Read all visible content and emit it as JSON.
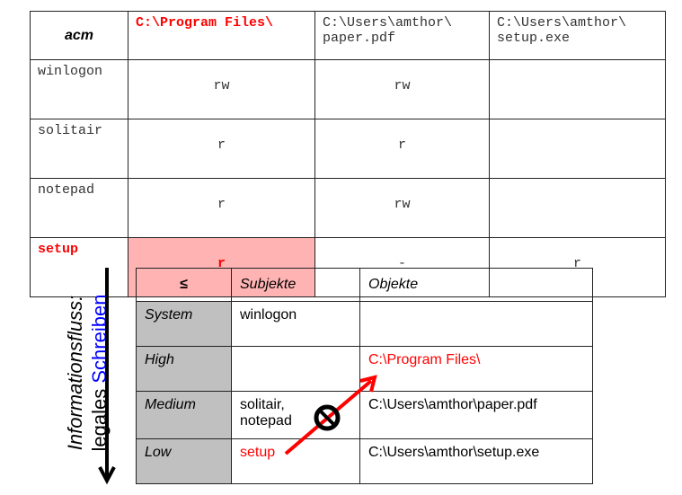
{
  "acm_table": {
    "corner": "acm",
    "columns": [
      "C:\\Program Files\\",
      "C:\\Users\\amthor\\ paper.pdf",
      "C:\\Users\\amthor\\ setup.exe"
    ],
    "rows": [
      {
        "subject": "winlogon",
        "cells": [
          "rw",
          "rw",
          ""
        ]
      },
      {
        "subject": "solitair",
        "cells": [
          "r",
          "r",
          ""
        ]
      },
      {
        "subject": "notepad",
        "cells": [
          "r",
          "rw",
          ""
        ]
      },
      {
        "subject": "setup",
        "cells": [
          "r",
          "-",
          "r"
        ]
      }
    ]
  },
  "flow_label": {
    "line1": "Informationsfluss:",
    "line2a": "legales ",
    "line2b": "Schreiben"
  },
  "level_table": {
    "headers": [
      "≤",
      "Subjekte",
      "Objekte"
    ],
    "rows": [
      {
        "level": "System",
        "subjects": "winlogon",
        "objects": ""
      },
      {
        "level": "High",
        "subjects": "",
        "objects": "C:\\Program Files\\"
      },
      {
        "level": "Medium",
        "subjects": "solitair, notepad",
        "objects": "C:\\Users\\amthor\\paper.pdf"
      },
      {
        "level": "Low",
        "subjects": "setup",
        "objects": "C:\\Users\\amthor\\setup.exe"
      }
    ]
  },
  "colors": {
    "highlight": "#ff0000",
    "pink": "#ffb3b3",
    "blue": "#0000ff",
    "gray": "#c0c0c0"
  }
}
